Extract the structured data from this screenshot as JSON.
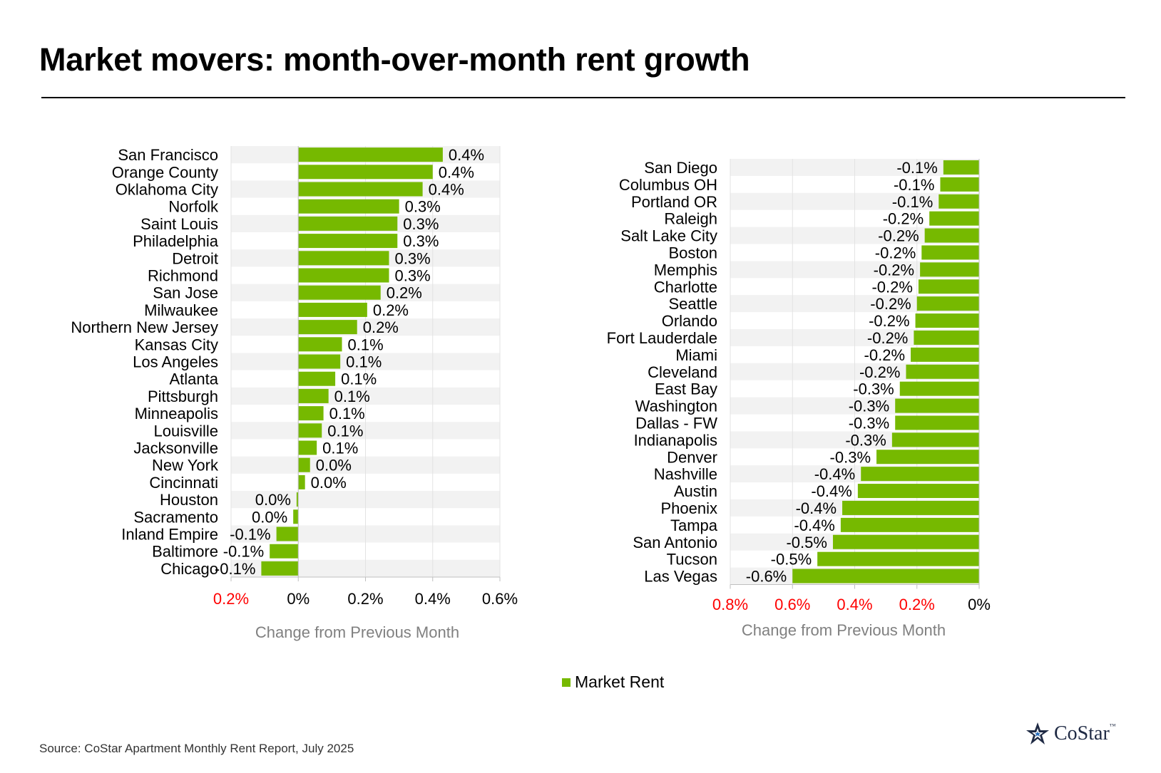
{
  "title": "Market movers: month-over-month rent growth",
  "source": "Source: CoStar Apartment Monthly Rent Report, July 2025",
  "logo": {
    "text": "CoStar",
    "tm": "™"
  },
  "legend": {
    "label": "Market Rent",
    "color": "#76b900"
  },
  "colors": {
    "bar": "#76b900",
    "band": "#f2f2f2",
    "grid": "#e3e3e3",
    "axis": "#bfbfbf",
    "negative_tick": "#ff0000",
    "axis_title": "#808080"
  },
  "chart_data": [
    {
      "type": "bar",
      "orientation": "horizontal",
      "series": [
        {
          "name": "Market Rent"
        }
      ],
      "xlabel": "Change from Previous Month",
      "xlim": [
        -0.2,
        0.6
      ],
      "xticks": [
        -0.2,
        0,
        0.2,
        0.4,
        0.6
      ],
      "tick_labels": [
        "0.2%",
        "0%",
        "0.2%",
        "0.4%",
        "0.6%"
      ],
      "categories": [
        "San Francisco",
        "Orange County",
        "Oklahoma City",
        "Norfolk",
        "Saint Louis",
        "Philadelphia",
        "Detroit",
        "Richmond",
        "San Jose",
        "Milwaukee",
        "Northern New Jersey",
        "Kansas City",
        "Los Angeles",
        "Atlanta",
        "Pittsburgh",
        "Minneapolis",
        "Louisville",
        "Jacksonville",
        "New York",
        "Cincinnati",
        "Houston",
        "Sacramento",
        "Inland Empire",
        "Baltimore",
        "Chicago"
      ],
      "values": [
        0.43,
        0.4,
        0.37,
        0.3,
        0.295,
        0.295,
        0.27,
        0.27,
        0.245,
        0.205,
        0.175,
        0.13,
        0.125,
        0.11,
        0.09,
        0.075,
        0.07,
        0.055,
        0.035,
        0.02,
        -0.005,
        -0.015,
        -0.065,
        -0.085,
        -0.11
      ],
      "labels": [
        "0.4%",
        "0.4%",
        "0.4%",
        "0.3%",
        "0.3%",
        "0.3%",
        "0.3%",
        "0.3%",
        "0.2%",
        "0.2%",
        "0.2%",
        "0.1%",
        "0.1%",
        "0.1%",
        "0.1%",
        "0.1%",
        "0.1%",
        "0.1%",
        "0.0%",
        "0.0%",
        "0.0%",
        "0.0%",
        "-0.1%",
        "-0.1%",
        "-0.1%"
      ]
    },
    {
      "type": "bar",
      "orientation": "horizontal",
      "series": [
        {
          "name": "Market Rent"
        }
      ],
      "xlabel": "Change from Previous Month",
      "xlim": [
        -0.8,
        0
      ],
      "xticks": [
        -0.8,
        -0.6,
        -0.4,
        -0.2,
        0
      ],
      "tick_labels": [
        "0.8%",
        "0.6%",
        "0.4%",
        "0.2%",
        "0%"
      ],
      "categories": [
        "San Diego",
        "Columbus OH",
        "Portland OR",
        "Raleigh",
        "Salt Lake City",
        "Boston",
        "Memphis",
        "Charlotte",
        "Seattle",
        "Orlando",
        "Fort Lauderdale",
        "Miami",
        "Cleveland",
        "East Bay",
        "Washington",
        "Dallas - FW",
        "Indianapolis",
        "Denver",
        "Nashville",
        "Austin",
        "Phoenix",
        "Tampa",
        "San Antonio",
        "Tucson",
        "Las Vegas"
      ],
      "values": [
        -0.115,
        -0.125,
        -0.13,
        -0.16,
        -0.175,
        -0.185,
        -0.19,
        -0.195,
        -0.2,
        -0.205,
        -0.21,
        -0.22,
        -0.235,
        -0.255,
        -0.27,
        -0.27,
        -0.28,
        -0.33,
        -0.38,
        -0.39,
        -0.44,
        -0.445,
        -0.47,
        -0.52,
        -0.6
      ],
      "labels": [
        "-0.1%",
        "-0.1%",
        "-0.1%",
        "-0.2%",
        "-0.2%",
        "-0.2%",
        "-0.2%",
        "-0.2%",
        "-0.2%",
        "-0.2%",
        "-0.2%",
        "-0.2%",
        "-0.2%",
        "-0.3%",
        "-0.3%",
        "-0.3%",
        "-0.3%",
        "-0.3%",
        "-0.4%",
        "-0.4%",
        "-0.4%",
        "-0.4%",
        "-0.5%",
        "-0.5%",
        "-0.6%"
      ]
    }
  ]
}
